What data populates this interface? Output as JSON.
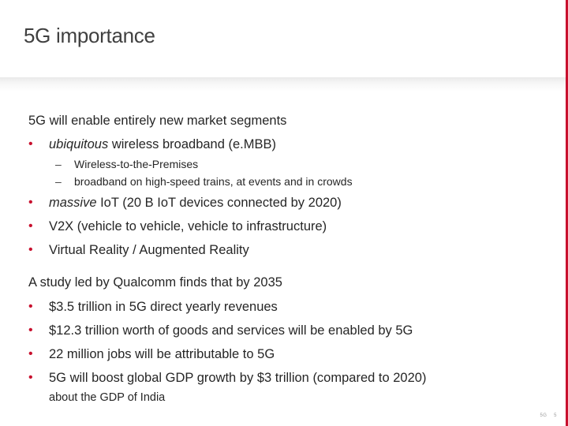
{
  "slide": {
    "title": "5G importance",
    "footer_left": "5G",
    "footer_page": "5"
  },
  "section1": {
    "heading": "5G will enable entirely new market segments",
    "items": [
      {
        "italic": "ubiquitous",
        "text": " wireless broadband (e.MBB)"
      },
      {
        "italic": "massive",
        "text": " IoT (20 B IoT devices connected by 2020)"
      },
      {
        "italic": "",
        "text": "V2X (vehicle to vehicle, vehicle to infrastructure)"
      },
      {
        "italic": "",
        "text": "Virtual Reality / Augmented Reality"
      }
    ],
    "subitems": [
      "Wireless-to-the-Premises",
      "broadband on high-speed trains, at events and in crowds"
    ]
  },
  "section2": {
    "heading": "A study led by Qualcomm finds that by 2035",
    "items": [
      "$3.5 trillion in 5G direct yearly revenues",
      "$12.3 trillion worth of goods and services will be enabled by 5G",
      "22 million jobs will be attributable to 5G",
      "5G will boost global GDP growth by $3 trillion (compared to 2020)"
    ],
    "note": "about the GDP of India"
  },
  "colors": {
    "accent": "#c8102e",
    "text": "#262626",
    "title": "#404040"
  }
}
